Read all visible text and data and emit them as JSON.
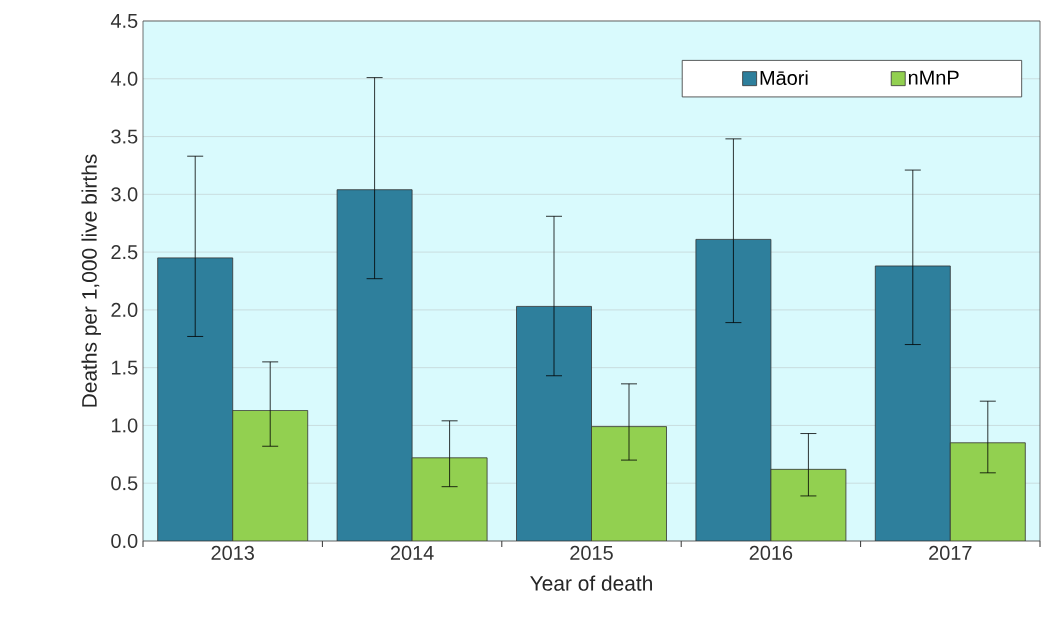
{
  "chart_data": {
    "type": "bar",
    "xlabel": "Year of death",
    "ylabel": "Deaths per 1,000 live births",
    "categories": [
      "2013",
      "2014",
      "2015",
      "2016",
      "2017"
    ],
    "series": [
      {
        "name": "Māori",
        "color": "#2e7f9c",
        "values": [
          2.45,
          3.04,
          2.03,
          2.61,
          2.38
        ],
        "errors": [
          [
            1.77,
            3.33
          ],
          [
            2.27,
            4.01
          ],
          [
            1.43,
            2.81
          ],
          [
            1.89,
            3.48
          ],
          [
            1.7,
            3.21
          ]
        ]
      },
      {
        "name": "nMnP",
        "color": "#92d050",
        "values": [
          1.13,
          0.72,
          0.99,
          0.62,
          0.85
        ],
        "errors": [
          [
            0.82,
            1.55
          ],
          [
            0.47,
            1.04
          ],
          [
            0.7,
            1.36
          ],
          [
            0.39,
            0.93
          ],
          [
            0.59,
            1.21
          ]
        ]
      }
    ],
    "ylim": [
      0,
      4.5
    ],
    "yticks": [
      {
        "value": 0,
        "label": "0.0"
      },
      0.5,
      {
        "value": 1,
        "label": "1.0"
      },
      1.5,
      {
        "value": 2,
        "label": "2.0"
      },
      2.5,
      {
        "value": 3,
        "label": "3.0"
      },
      3.5,
      {
        "value": 4,
        "label": "4.0"
      },
      4.5
    ],
    "grid": "y",
    "legend": "top right"
  }
}
